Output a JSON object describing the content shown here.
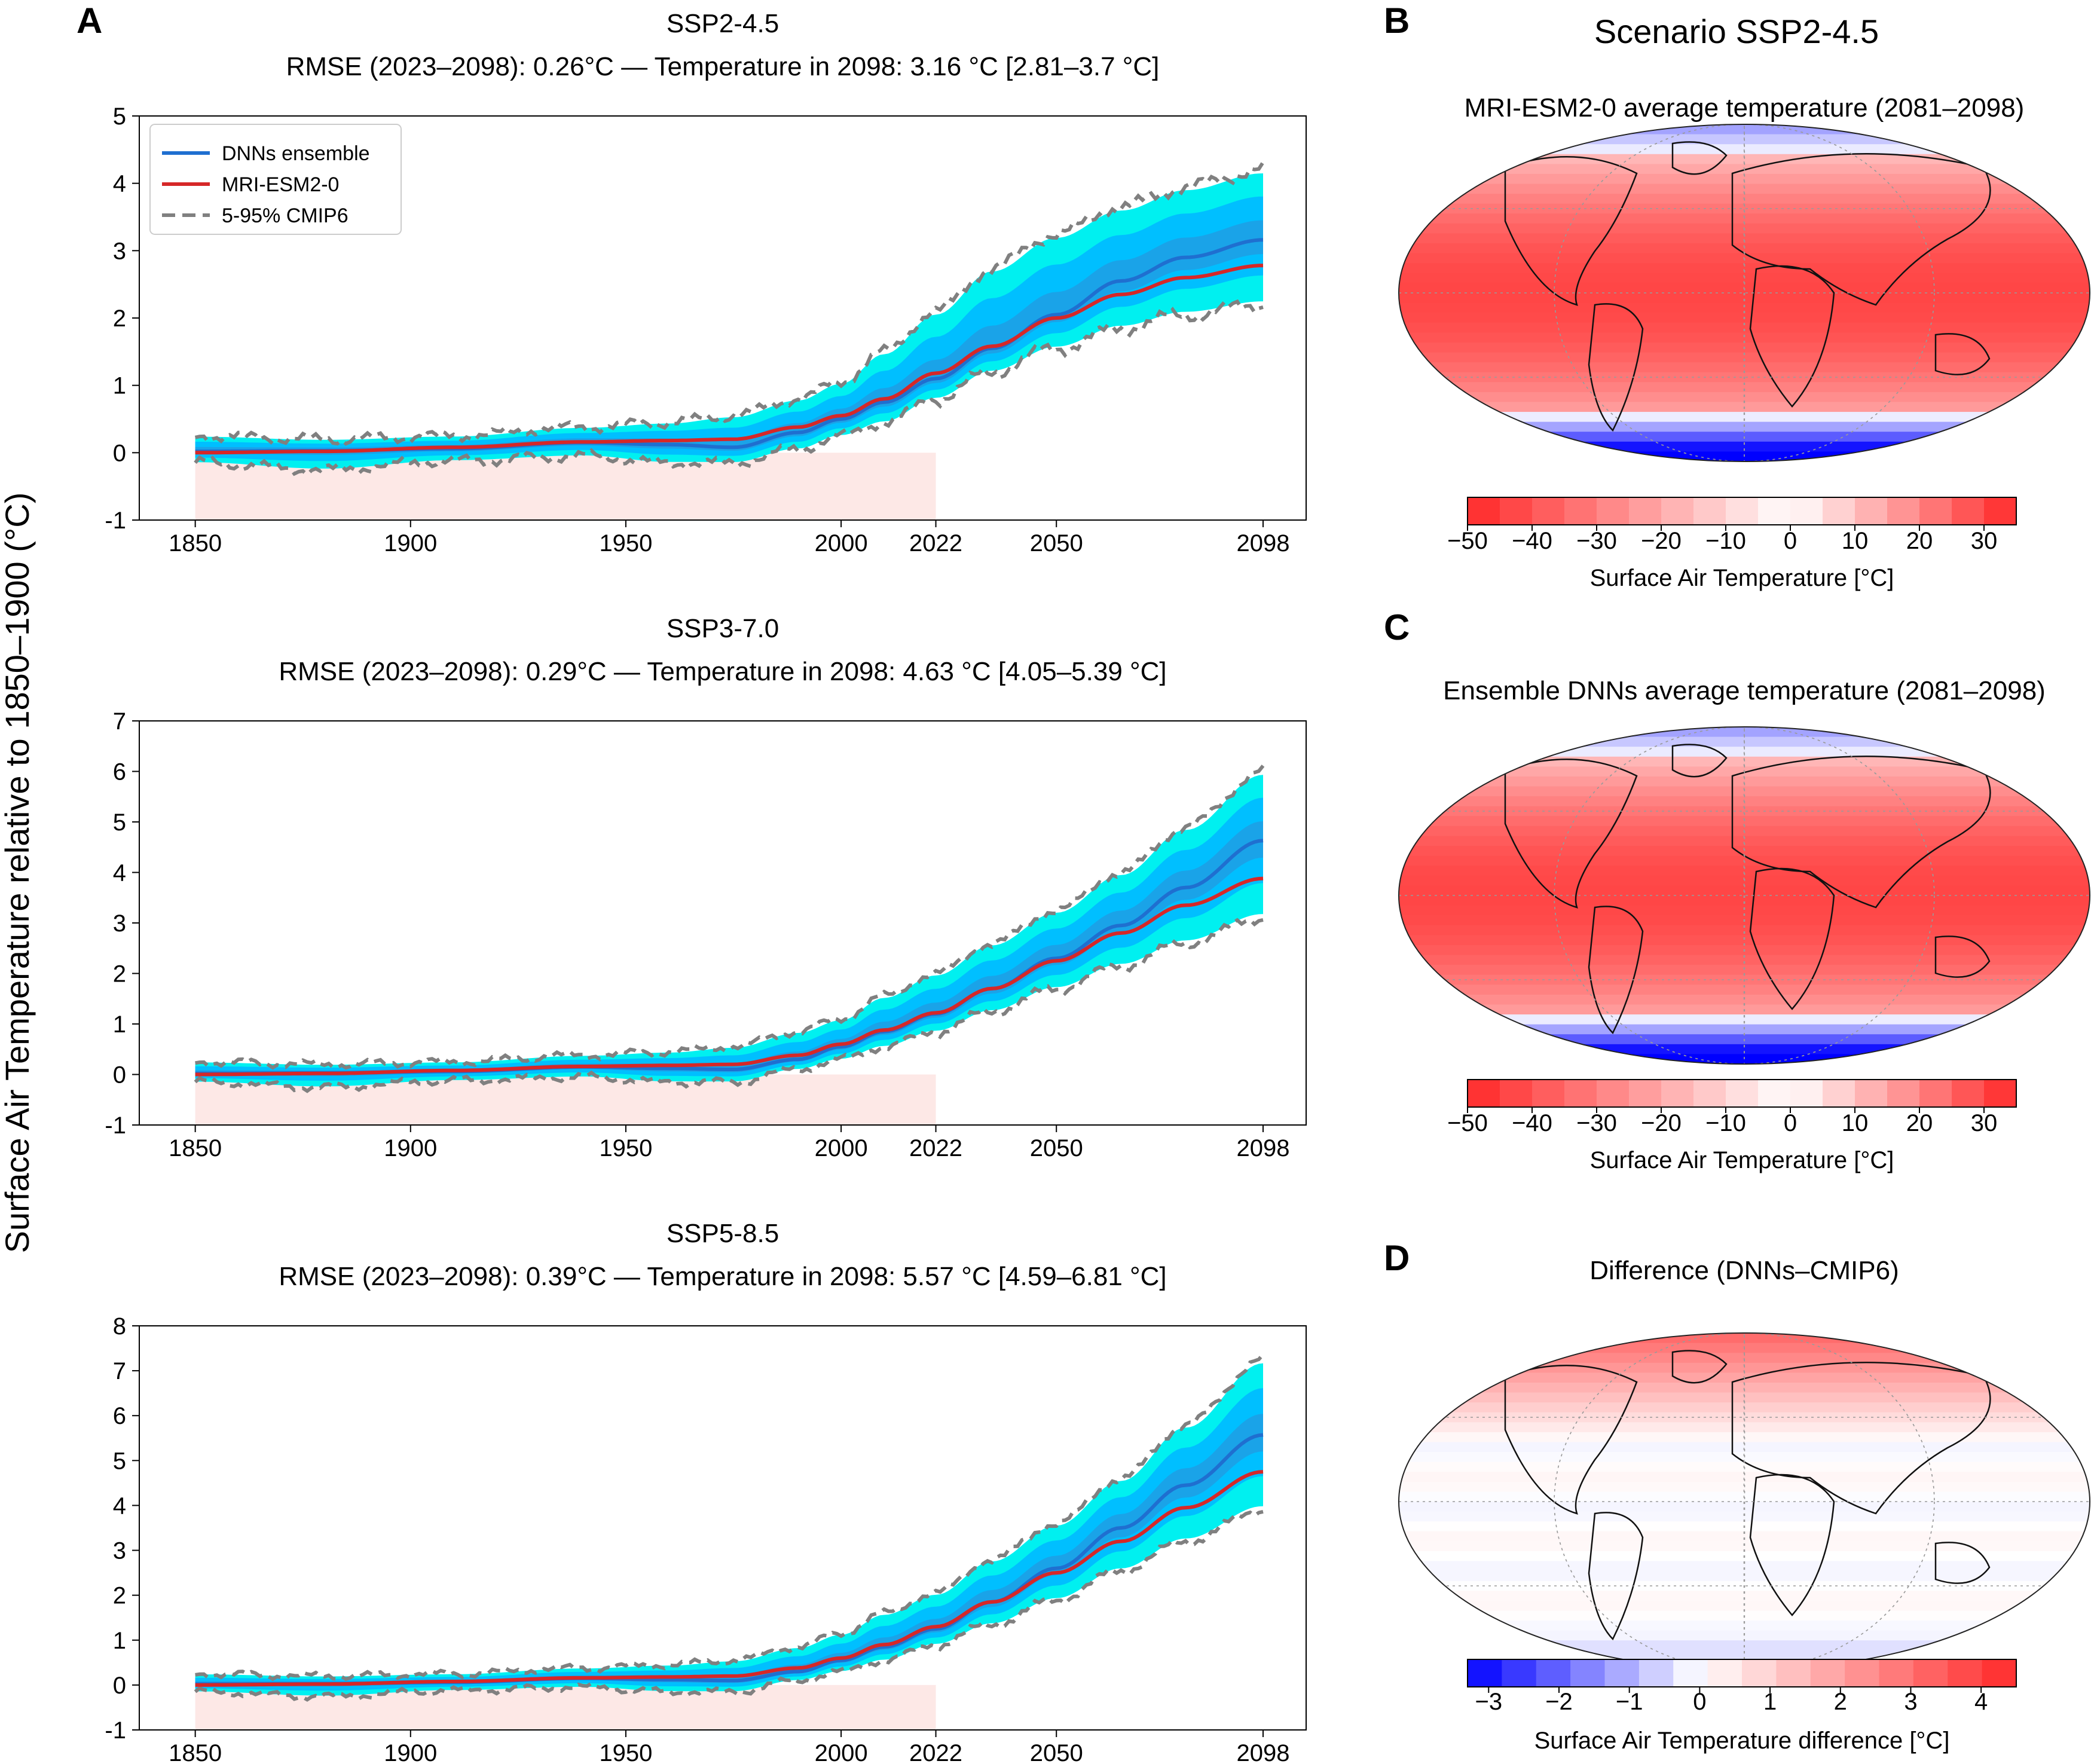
{
  "panel_letters": [
    "A",
    "B",
    "C",
    "D"
  ],
  "shared_ylabel": "Surface Air Temperature relative to 1850–1900 (°C)",
  "legend": {
    "dnn": "DNNs ensemble",
    "model": "MRI-ESM2-0",
    "cmip": "5-95% CMIP6"
  },
  "colors": {
    "dnn_line": "#1f6fd0",
    "model_line": "#d62728",
    "cmip_dash": "#808080",
    "band_outer": "#00f0f0",
    "band_inner": "#00bfff",
    "band_core": "#1aa3e8",
    "historical_shade": "#fde8e6"
  },
  "maps_title": "Scenario SSP2-4.5",
  "chart_data": [
    {
      "type": "line",
      "title": "SSP2-4.5",
      "subtitle": "RMSE (2023–2098): 0.26°C — Temperature in 2098: 3.16 °C [2.81–3.7 °C]",
      "xlim": [
        1837,
        2108
      ],
      "ylim": [
        -1,
        5
      ],
      "xticks": [
        1850,
        1900,
        1950,
        2000,
        2022,
        2050,
        2098
      ],
      "yticks": [
        -1,
        0,
        1,
        2,
        3,
        4,
        5
      ],
      "historical_end": 2022,
      "x": [
        1850,
        1880,
        1910,
        1940,
        1960,
        1975,
        1990,
        2000,
        2010,
        2022,
        2035,
        2050,
        2065,
        2080,
        2098
      ],
      "series": [
        {
          "name": "DNNs ensemble",
          "values": [
            0.02,
            0.03,
            0.06,
            0.15,
            0.12,
            0.08,
            0.3,
            0.5,
            0.75,
            1.1,
            1.55,
            2.05,
            2.55,
            2.9,
            3.16
          ]
        },
        {
          "name": "MRI-ESM2-0",
          "values": [
            0.0,
            0.02,
            0.08,
            0.16,
            0.18,
            0.2,
            0.38,
            0.55,
            0.8,
            1.18,
            1.58,
            2.0,
            2.35,
            2.6,
            2.78
          ]
        },
        {
          "name": "5-95% CMIP6 upper",
          "values": [
            0.25,
            0.2,
            0.25,
            0.38,
            0.45,
            0.55,
            0.8,
            1.05,
            1.5,
            2.1,
            2.75,
            3.25,
            3.65,
            3.95,
            4.2
          ]
        },
        {
          "name": "5-95% CMIP6 lower",
          "values": [
            -0.15,
            -0.25,
            -0.12,
            -0.05,
            -0.15,
            -0.15,
            0.05,
            0.25,
            0.45,
            0.8,
            1.2,
            1.55,
            1.85,
            2.05,
            2.2
          ]
        }
      ]
    },
    {
      "type": "line",
      "title": "SSP3-7.0",
      "subtitle": "RMSE (2023–2098): 0.29°C — Temperature in 2098: 4.63 °C [4.05–5.39 °C]",
      "xlim": [
        1837,
        2108
      ],
      "ylim": [
        -1,
        7
      ],
      "xticks": [
        1850,
        1900,
        1950,
        2000,
        2022,
        2050,
        2098
      ],
      "yticks": [
        -1,
        0,
        1,
        2,
        3,
        4,
        5,
        6,
        7
      ],
      "historical_end": 2022,
      "x": [
        1850,
        1880,
        1910,
        1940,
        1960,
        1975,
        1990,
        2000,
        2010,
        2022,
        2035,
        2050,
        2065,
        2080,
        2098
      ],
      "series": [
        {
          "name": "DNNs ensemble",
          "values": [
            0.02,
            0.03,
            0.06,
            0.15,
            0.12,
            0.1,
            0.3,
            0.55,
            0.85,
            1.2,
            1.7,
            2.3,
            2.95,
            3.7,
            4.63
          ]
        },
        {
          "name": "MRI-ESM2-0",
          "values": [
            0.0,
            0.02,
            0.08,
            0.16,
            0.18,
            0.2,
            0.38,
            0.6,
            0.88,
            1.22,
            1.7,
            2.25,
            2.8,
            3.35,
            3.88
          ]
        },
        {
          "name": "5-95% CMIP6 upper",
          "values": [
            0.25,
            0.2,
            0.25,
            0.38,
            0.45,
            0.55,
            0.85,
            1.1,
            1.55,
            2.0,
            2.6,
            3.25,
            4.0,
            4.9,
            6.0
          ]
        },
        {
          "name": "5-95% CMIP6 lower",
          "values": [
            -0.15,
            -0.25,
            -0.12,
            -0.05,
            -0.15,
            -0.15,
            0.1,
            0.3,
            0.55,
            0.85,
            1.25,
            1.7,
            2.15,
            2.6,
            3.1
          ]
        }
      ]
    },
    {
      "type": "line",
      "title": "SSP5-8.5",
      "subtitle": "RMSE (2023–2098): 0.39°C — Temperature in 2098: 5.57 °C [4.59–6.81 °C]",
      "xlim": [
        1837,
        2108
      ],
      "ylim": [
        -1,
        8
      ],
      "xticks": [
        1850,
        1900,
        1950,
        2000,
        2022,
        2050,
        2098
      ],
      "yticks": [
        -1,
        0,
        1,
        2,
        3,
        4,
        5,
        6,
        7,
        8
      ],
      "historical_end": 2022,
      "x": [
        1850,
        1880,
        1910,
        1940,
        1960,
        1975,
        1990,
        2000,
        2010,
        2022,
        2035,
        2050,
        2065,
        2080,
        2098
      ],
      "series": [
        {
          "name": "DNNs ensemble",
          "values": [
            0.02,
            0.03,
            0.06,
            0.15,
            0.12,
            0.1,
            0.3,
            0.55,
            0.85,
            1.25,
            1.85,
            2.6,
            3.5,
            4.45,
            5.57
          ]
        },
        {
          "name": "MRI-ESM2-0",
          "values": [
            0.0,
            0.02,
            0.08,
            0.16,
            0.18,
            0.2,
            0.38,
            0.6,
            0.9,
            1.3,
            1.85,
            2.5,
            3.2,
            3.95,
            4.75
          ]
        },
        {
          "name": "5-95% CMIP6 upper",
          "values": [
            0.25,
            0.2,
            0.25,
            0.38,
            0.45,
            0.55,
            0.85,
            1.15,
            1.6,
            2.05,
            2.8,
            3.6,
            4.6,
            5.8,
            7.25
          ]
        },
        {
          "name": "5-95% CMIP6 lower",
          "values": [
            -0.15,
            -0.25,
            -0.12,
            -0.05,
            -0.15,
            -0.15,
            0.1,
            0.3,
            0.55,
            0.9,
            1.35,
            1.9,
            2.55,
            3.2,
            3.9
          ]
        }
      ]
    },
    {
      "type": "heatmap",
      "title": "MRI-ESM2-0 average temperature (2081–2098)",
      "colorbar_label": "Surface Air Temperature [°C]",
      "colorbar_ticks": [
        "−50",
        "−40",
        "−30",
        "−20",
        "−10",
        "0",
        "10",
        "20",
        "30"
      ],
      "vmin": -50,
      "vmax": 35,
      "palette": "blue-white-red"
    },
    {
      "type": "heatmap",
      "title": "Ensemble DNNs average temperature (2081–2098)",
      "colorbar_label": "Surface Air Temperature [°C]",
      "colorbar_ticks": [
        "−50",
        "−40",
        "−30",
        "−20",
        "−10",
        "0",
        "10",
        "20",
        "30"
      ],
      "vmin": -50,
      "vmax": 35,
      "palette": "blue-white-red"
    },
    {
      "type": "heatmap",
      "title": "Difference (DNNs–CMIP6)",
      "colorbar_label": "Surface Air Temperature difference [°C]",
      "colorbar_ticks": [
        "−3",
        "−2",
        "−1",
        "0",
        "1",
        "2",
        "3",
        "4"
      ],
      "vmin": -3.3,
      "vmax": 4.5,
      "palette": "blue-white-red"
    }
  ]
}
